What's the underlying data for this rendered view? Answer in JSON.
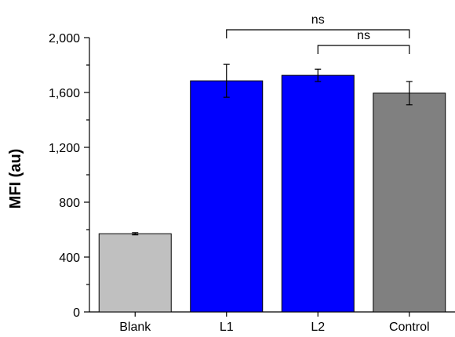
{
  "chart_data": {
    "type": "bar",
    "title": "",
    "xlabel": "",
    "ylabel": "MFI (au)",
    "ylim": [
      0,
      2000
    ],
    "yticks": [
      "0",
      "400",
      "800",
      "1,200",
      "1,600",
      "2,000"
    ],
    "ytick_values": [
      0,
      400,
      800,
      1200,
      1600,
      2000
    ],
    "categories": [
      "Blank",
      "L1",
      "L2",
      "Control"
    ],
    "values": [
      570,
      1685,
      1725,
      1595
    ],
    "errors": [
      8,
      120,
      45,
      85
    ],
    "colors": [
      "#c0c0c0",
      "#0000ff",
      "#0000ff",
      "#808080"
    ],
    "grid": false,
    "significance": [
      {
        "from": "L1",
        "to": "Control",
        "label": "ns"
      },
      {
        "from": "L2",
        "to": "Control",
        "label": "ns"
      }
    ]
  }
}
